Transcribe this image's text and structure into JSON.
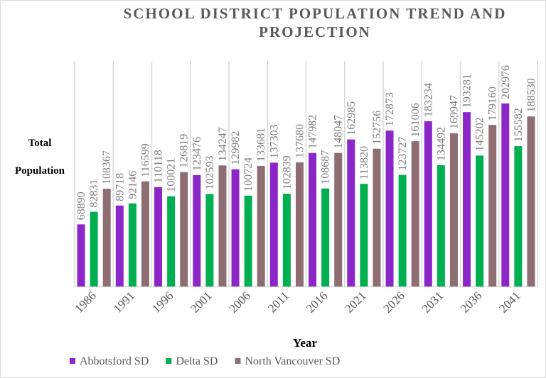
{
  "chart_data": {
    "type": "bar",
    "title": "SCHOOL DISTRICT POPULATION TREND AND PROJECTION",
    "xlabel": "Year",
    "ylabel": "Total Population",
    "categories": [
      "1986",
      "1991",
      "1996",
      "2001",
      "2006",
      "2011",
      "2016",
      "2021",
      "2026",
      "2031",
      "2036",
      "2041"
    ],
    "ylim": [
      0,
      250000
    ],
    "grid": "vertical category lines",
    "legend": "bottom",
    "series": [
      {
        "name": "Abbotsford SD",
        "color": "#8b27c9",
        "values": [
          68890,
          89718,
          110118,
          123476,
          129982,
          137303,
          147982,
          162985,
          172873,
          183234,
          193281,
          202976
        ]
      },
      {
        "name": "Delta SD",
        "color": "#00b050",
        "values": [
          82831,
          92146,
          100021,
          102593,
          100724,
          102839,
          108687,
          113820,
          123727,
          134492,
          145202,
          155582
        ]
      },
      {
        "name": "North Vancouver SD",
        "color": "#8e6e73",
        "values": [
          108367,
          116599,
          126819,
          134247,
          133681,
          137680,
          148047,
          152756,
          161006,
          169947,
          179160,
          188530
        ]
      }
    ]
  }
}
